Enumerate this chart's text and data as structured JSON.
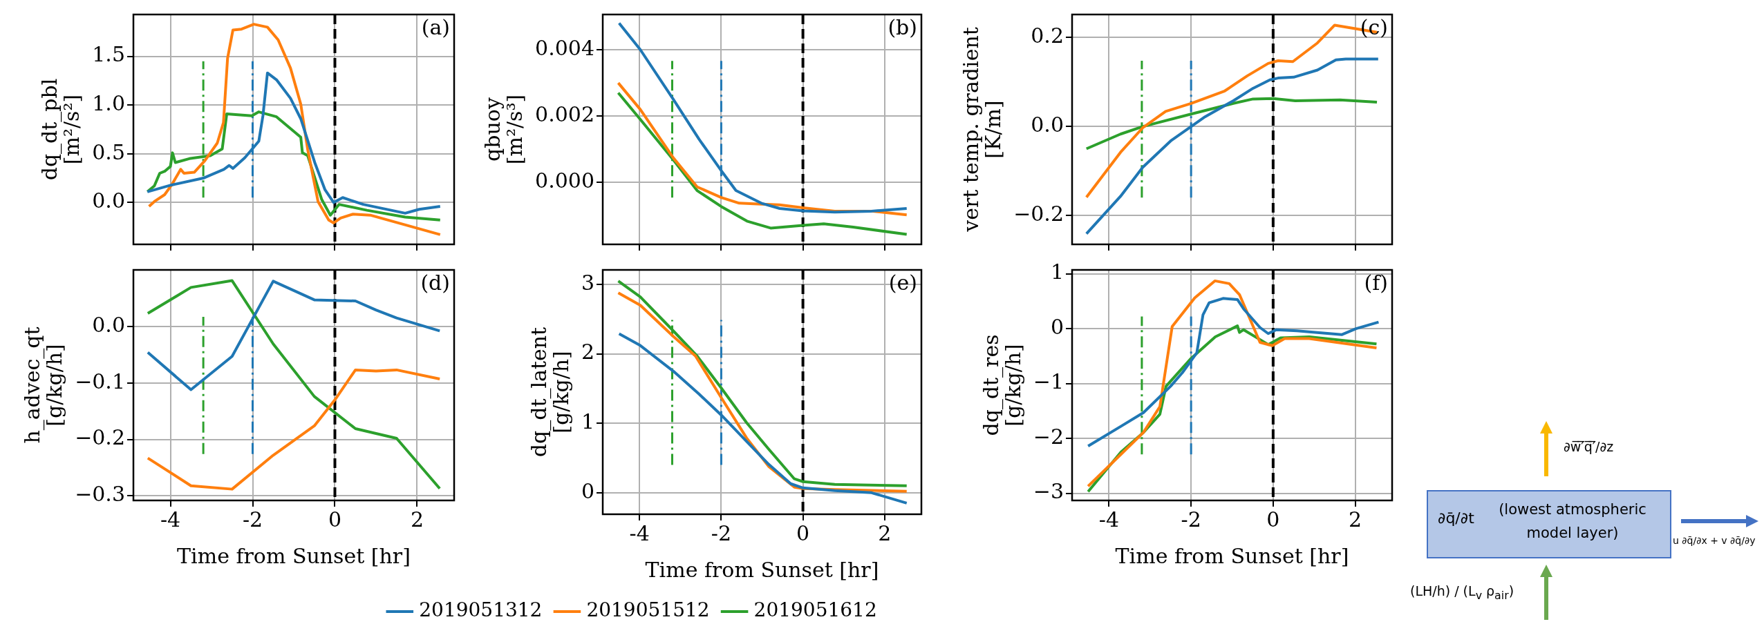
{
  "chart_data": [
    {
      "type": "line",
      "ylabel": "dq_dt_pbl\n[m²/s²]",
      "annotations": [
        "(a)"
      ],
      "xlim": [
        -4.9,
        2.9
      ],
      "xticks": [
        -4,
        -2,
        0,
        2
      ],
      "ylim": [
        -0.43,
        1.93
      ],
      "yticks": [
        {
          "value": 0,
          "label": "0.0"
        },
        {
          "value": 0.5,
          "label": "0.5"
        },
        {
          "value": 1,
          "label": "1.0"
        },
        {
          "value": 1.5,
          "label": "1.5"
        }
      ],
      "grid": true,
      "tick_labels": "y",
      "ref_lines": [
        {
          "axis": "x",
          "value": 0,
          "color": "#000000",
          "line_style": "dashed"
        }
      ],
      "series": [
        {
          "color": "#1f77b4",
          "x": [
            -4.56,
            -3.97,
            -3.2,
            -2.7,
            -2.57,
            -2.48,
            -2.19,
            -1.85,
            -1.75,
            -1.64,
            -1.42,
            -1.08,
            -0.83,
            -0.49,
            -0.24,
            -0.03,
            0.19,
            0.69,
            1.71,
            2.05,
            2.56
          ],
          "values": [
            0.11,
            0.18,
            0.25,
            0.34,
            0.38,
            0.35,
            0.46,
            0.63,
            0.89,
            1.33,
            1.26,
            1.07,
            0.86,
            0.41,
            0.13,
            0.0,
            0.05,
            -0.02,
            -0.11,
            -0.07,
            -0.04
          ]
        },
        {
          "color": "#ff7f0e",
          "x": [
            -4.52,
            -4.39,
            -4.14,
            -3.97,
            -3.75,
            -3.67,
            -3.42,
            -3.16,
            -2.86,
            -2.71,
            -2.61,
            -2.48,
            -2.27,
            -1.97,
            -1.64,
            -1.38,
            -1.08,
            -0.83,
            -0.66,
            -0.41,
            -0.15,
            -0.03,
            0.14,
            0.44,
            0.86,
            2.56
          ],
          "values": [
            -0.04,
            0.01,
            0.08,
            0.18,
            0.34,
            0.3,
            0.31,
            0.43,
            0.61,
            0.82,
            1.48,
            1.77,
            1.78,
            1.83,
            1.8,
            1.67,
            1.38,
            1.01,
            0.54,
            0.01,
            -0.18,
            -0.21,
            -0.16,
            -0.12,
            -0.13,
            -0.33
          ]
        },
        {
          "color": "#2ca02c",
          "x": [
            -4.56,
            -4.39,
            -4.26,
            -4.14,
            -4.0,
            -3.95,
            -3.88,
            -3.54,
            -3.03,
            -2.74,
            -2.63,
            -2.36,
            -2.02,
            -1.85,
            -1.42,
            -0.83,
            -0.79,
            -0.66,
            -0.32,
            -0.11,
            0.1,
            0.78,
            1.71,
            2.56
          ],
          "values": [
            0.11,
            0.17,
            0.3,
            0.32,
            0.37,
            0.51,
            0.41,
            0.45,
            0.48,
            0.55,
            0.91,
            0.9,
            0.89,
            0.93,
            0.88,
            0.67,
            0.51,
            0.48,
            0.03,
            -0.13,
            -0.02,
            -0.08,
            -0.15,
            -0.18
          ]
        },
        {
          "color": "#2ca02c",
          "line_style": "dashdot",
          "x": [
            -3.2,
            -3.2
          ],
          "values": [
            0.05,
            1.45
          ]
        },
        {
          "color": "#1f77b4",
          "line_style": "dashdot",
          "x": [
            -2,
            -2
          ],
          "values": [
            0.05,
            1.45
          ]
        }
      ]
    },
    {
      "type": "line",
      "ylabel": "qbuoy\n[m²/s³]",
      "annotations": [
        "(b)"
      ],
      "xlim": [
        -4.9,
        2.9
      ],
      "xticks": [
        -4,
        -2,
        0,
        2
      ],
      "ylim": [
        -0.00186,
        0.00506
      ],
      "yticks": [
        {
          "value": 0,
          "label": "0.000"
        },
        {
          "value": 0.002,
          "label": "0.002"
        },
        {
          "value": 0.004,
          "label": "0.004"
        }
      ],
      "grid": true,
      "tick_labels": "y",
      "ref_lines": [
        {
          "axis": "x",
          "value": 0,
          "color": "#000000",
          "line_style": "dashed"
        }
      ],
      "series": [
        {
          "color": "#1f77b4",
          "x": [
            -4.5,
            -3.98,
            -3.17,
            -2.54,
            -2.0,
            -1.64,
            -1.02,
            -0.57,
            0,
            0.78,
            1.68,
            2.54
          ],
          "values": [
            0.0048,
            0.004,
            0.0025,
            0.0013,
            0.00036,
            -0.00024,
            -0.00062,
            -0.00078,
            -0.00085,
            -0.00089,
            -0.00086,
            -0.00078
          ]
        },
        {
          "color": "#ff7f0e",
          "x": [
            -4.52,
            -3.98,
            -3.17,
            -2.59,
            -2.0,
            -1.56,
            -1.02,
            -0.57,
            0,
            0.78,
            1.68,
            2.54
          ],
          "values": [
            0.003,
            0.0022,
            0.00074,
            -0.00013,
            -0.00045,
            -0.00062,
            -0.00065,
            -0.00067,
            -0.00076,
            -0.00086,
            -0.00086,
            -0.00097
          ]
        },
        {
          "color": "#2ca02c",
          "x": [
            -4.52,
            -3.98,
            -3.17,
            -2.59,
            -2.0,
            -1.37,
            -0.79,
            0,
            0.51,
            1.23,
            2.54
          ],
          "values": [
            0.0027,
            0.0019,
            0.00068,
            -0.00024,
            -0.00072,
            -0.00116,
            -0.00137,
            -0.00129,
            -0.00124,
            -0.00134,
            -0.00156
          ]
        },
        {
          "color": "#2ca02c",
          "line_style": "dashdot",
          "x": [
            -3.2,
            -3.2
          ],
          "values": [
            -0.00045,
            0.00366
          ]
        },
        {
          "color": "#1f77b4",
          "line_style": "dashdot",
          "x": [
            -2,
            -2
          ],
          "values": [
            -0.00045,
            0.00366
          ]
        }
      ]
    },
    {
      "type": "line",
      "ylabel": "vert temp. gradient\n[K/m]",
      "annotations": [
        "(c)"
      ],
      "xlim": [
        -4.9,
        2.9
      ],
      "xticks": [
        -4,
        -2,
        0,
        2
      ],
      "ylim": [
        -0.265,
        0.252
      ],
      "yticks": [
        {
          "value": -0.2,
          "label": "−0.2"
        },
        {
          "value": 0,
          "label": "0.0"
        },
        {
          "value": 0.2,
          "label": "0.2"
        }
      ],
      "grid": true,
      "tick_labels": "y",
      "ref_lines": [
        {
          "axis": "x",
          "value": 0,
          "color": "#000000",
          "line_style": "dashed"
        }
      ],
      "series": [
        {
          "color": "#1f77b4",
          "x": [
            -4.55,
            -3.72,
            -3.18,
            -2.48,
            -2.0,
            -1.66,
            -0.97,
            -0.49,
            -0.08,
            0.12,
            0.5,
            1.08,
            1.53,
            1.77,
            2.56
          ],
          "values": [
            -0.241,
            -0.157,
            -0.092,
            -0.031,
            0,
            0.022,
            0.058,
            0.086,
            0.105,
            0.109,
            0.111,
            0.127,
            0.15,
            0.152,
            0.152
          ]
        },
        {
          "color": "#ff7f0e",
          "x": [
            -4.55,
            -3.72,
            -3.18,
            -2.62,
            -2.0,
            -1.18,
            -0.63,
            -0.12,
            0.12,
            0.48,
            1.08,
            1.5,
            2.53
          ],
          "values": [
            -0.159,
            -0.058,
            -0.003,
            0.034,
            0.052,
            0.08,
            0.114,
            0.142,
            0.148,
            0.146,
            0.188,
            0.228,
            0.212
          ]
        },
        {
          "color": "#2ca02c",
          "x": [
            -4.55,
            -3.72,
            -3.18,
            -2.0,
            -0.97,
            -0.49,
            0,
            0.54,
            1.63,
            2.53
          ],
          "values": [
            -0.05,
            -0.017,
            0,
            0.028,
            0.052,
            0.062,
            0.063,
            0.058,
            0.06,
            0.055
          ]
        },
        {
          "color": "#2ca02c",
          "line_style": "dashdot",
          "x": [
            -3.2,
            -3.2
          ],
          "values": [
            -0.16,
            0.148
          ]
        },
        {
          "color": "#1f77b4",
          "line_style": "dashdot",
          "x": [
            -2,
            -2
          ],
          "values": [
            -0.16,
            0.148
          ]
        }
      ]
    },
    {
      "type": "line",
      "xlabel": "Time from Sunset [hr]",
      "ylabel": "h_advec_qt\n[g/kg/h]",
      "annotations": [
        "(d)"
      ],
      "xlim": [
        -4.9,
        2.9
      ],
      "xticks": [
        -4,
        -2,
        0,
        2
      ],
      "ylim": [
        -0.308,
        0.1
      ],
      "yticks": [
        {
          "value": -0.3,
          "label": "−0.3"
        },
        {
          "value": -0.2,
          "label": "−0.2"
        },
        {
          "value": -0.1,
          "label": "−0.1"
        },
        {
          "value": 0,
          "label": "0.0"
        }
      ],
      "grid": true,
      "ref_lines": [
        {
          "axis": "x",
          "value": 0,
          "color": "#000000",
          "line_style": "dashed"
        }
      ],
      "series": [
        {
          "color": "#1f77b4",
          "x": [
            -4.55,
            -3.5,
            -2.5,
            -1.5,
            -0.5,
            0.5,
            1.0,
            1.5,
            2.55
          ],
          "values": [
            -0.046,
            -0.112,
            -0.053,
            0.08,
            0.047,
            0.045,
            0.029,
            0.015,
            -0.008
          ]
        },
        {
          "color": "#ff7f0e",
          "x": [
            -4.55,
            -3.5,
            -2.5,
            -1.5,
            -0.5,
            0,
            0.5,
            1.0,
            1.5,
            2.55
          ],
          "values": [
            -0.233,
            -0.282,
            -0.288,
            -0.228,
            -0.176,
            -0.13,
            -0.077,
            -0.079,
            -0.077,
            -0.093
          ]
        },
        {
          "color": "#2ca02c",
          "x": [
            -4.55,
            -3.5,
            -2.5,
            -1.5,
            -0.5,
            0.5,
            1.5,
            2.55
          ],
          "values": [
            0.023,
            0.069,
            0.081,
            -0.031,
            -0.124,
            -0.181,
            -0.198,
            -0.287
          ]
        },
        {
          "color": "#2ca02c",
          "line_style": "dashdot",
          "x": [
            -3.2,
            -3.2
          ],
          "values": [
            -0.226,
            0.017
          ]
        },
        {
          "color": "#1f77b4",
          "line_style": "dashdot",
          "x": [
            -2,
            -2
          ],
          "values": [
            -0.226,
            0.017
          ]
        }
      ]
    },
    {
      "type": "line",
      "xlabel": "Time from Sunset [hr]",
      "ylabel": "dq_dt_latent\n[g/kg/h]",
      "annotations": [
        "(e)"
      ],
      "xlim": [
        -4.9,
        2.9
      ],
      "xticks": [
        -4,
        -2,
        0,
        2
      ],
      "ylim": [
        -0.31,
        3.21
      ],
      "yticks": [
        0,
        1,
        2,
        3
      ],
      "grid": true,
      "legend": "bottom",
      "ref_lines": [
        {
          "axis": "x",
          "value": 0,
          "color": "#000000",
          "line_style": "dashed"
        }
      ],
      "series": [
        {
          "name": "2019051312",
          "color": "#1f77b4",
          "x": [
            -4.5,
            -3.98,
            -3.17,
            -2.54,
            -2.0,
            -1.38,
            -0.84,
            -0.3,
            0,
            0.78,
            1.68,
            2.54
          ],
          "values": [
            2.29,
            2.12,
            1.75,
            1.42,
            1.12,
            0.74,
            0.41,
            0.13,
            0.07,
            0.03,
            0.0,
            -0.15
          ]
        },
        {
          "name": "2019051512",
          "color": "#ff7f0e",
          "x": [
            -4.52,
            -3.98,
            -3.17,
            -2.63,
            -2.0,
            -1.38,
            -0.84,
            -0.21,
            0,
            0.78,
            2.54
          ],
          "values": [
            2.88,
            2.7,
            2.25,
            1.97,
            1.37,
            0.79,
            0.38,
            0.08,
            0.06,
            0.045,
            0.02
          ]
        },
        {
          "name": "2019051612",
          "color": "#2ca02c",
          "x": [
            -4.52,
            -3.98,
            -3.17,
            -2.59,
            -2.0,
            -1.38,
            -0.84,
            -0.21,
            0,
            0.78,
            2.54
          ],
          "values": [
            3.05,
            2.82,
            2.33,
            1.97,
            1.51,
            1.01,
            0.63,
            0.2,
            0.16,
            0.12,
            0.1
          ]
        },
        {
          "color": "#2ca02c",
          "line_style": "dashdot",
          "x": [
            -3.2,
            -3.2
          ],
          "values": [
            0.4,
            2.49
          ]
        },
        {
          "color": "#1f77b4",
          "line_style": "dashdot",
          "x": [
            -2,
            -2
          ],
          "values": [
            0.4,
            2.49
          ]
        }
      ]
    },
    {
      "type": "line",
      "xlabel": "Time from Sunset [hr]",
      "ylabel": "dq_dt_res\n[g/kg/h]",
      "annotations": [
        "(f)"
      ],
      "xlim": [
        -4.9,
        2.9
      ],
      "xticks": [
        -4,
        -2,
        0,
        2
      ],
      "ylim": [
        -3.13,
        1.07
      ],
      "yticks": [
        {
          "value": -3,
          "label": "−3"
        },
        {
          "value": -2,
          "label": "−2"
        },
        {
          "value": -1,
          "label": "−1"
        },
        0,
        1
      ],
      "grid": true,
      "ref_lines": [
        {
          "axis": "x",
          "value": 0,
          "color": "#000000",
          "line_style": "dashed"
        }
      ],
      "series": [
        {
          "color": "#1f77b4",
          "x": [
            -4.51,
            -3.71,
            -3.16,
            -2.5,
            -2.21,
            -1.86,
            -1.71,
            -1.56,
            -1.22,
            -0.87,
            -0.72,
            -0.32,
            -0.12,
            0.08,
            0.58,
            1.67,
            2.02,
            2.57
          ],
          "values": [
            -2.14,
            -1.78,
            -1.53,
            -1.05,
            -0.8,
            -0.44,
            0.25,
            0.47,
            0.55,
            0.53,
            0.36,
            0.02,
            -0.09,
            -0.02,
            -0.04,
            -0.11,
            0.0,
            0.12
          ]
        },
        {
          "color": "#ff7f0e",
          "x": [
            -4.51,
            -3.71,
            -3.16,
            -2.76,
            -2.61,
            -2.46,
            -1.91,
            -1.42,
            -1.07,
            -0.82,
            -0.32,
            -0.02,
            0.28,
            0.88,
            2.52
          ],
          "values": [
            -2.87,
            -2.29,
            -1.89,
            -1.42,
            -0.69,
            0.04,
            0.56,
            0.87,
            0.82,
            0.62,
            -0.25,
            -0.31,
            -0.18,
            -0.18,
            -0.35
          ]
        },
        {
          "color": "#2ca02c",
          "x": [
            -4.51,
            -3.71,
            -3.16,
            -2.76,
            -2.61,
            -2.01,
            -1.41,
            -0.87,
            -0.82,
            -0.72,
            -0.12,
            0.18,
            0.88,
            2.52
          ],
          "values": [
            -2.97,
            -2.25,
            -1.89,
            -1.56,
            -1.05,
            -0.55,
            -0.15,
            0.05,
            -0.07,
            -0.02,
            -0.29,
            -0.17,
            -0.15,
            -0.28
          ]
        },
        {
          "color": "#2ca02c",
          "line_style": "dashdot",
          "x": [
            -3.2,
            -3.2
          ],
          "values": [
            -2.29,
            0.22
          ]
        },
        {
          "color": "#1f77b4",
          "line_style": "dashdot",
          "x": [
            -2,
            -2
          ],
          "values": [
            -2.29,
            0.22
          ]
        }
      ]
    },
    {
      "type": "other",
      "annotations": [
        "∂q̄/∂t",
        "(lowest atmospheric model layer)",
        "∂w̅′̅q̅′̅/∂z",
        "(LH/h) / (L$_{v}$ ρ$_{air}$)",
        "u ∂q̄/∂x + v ∂q̄/∂y"
      ]
    }
  ]
}
